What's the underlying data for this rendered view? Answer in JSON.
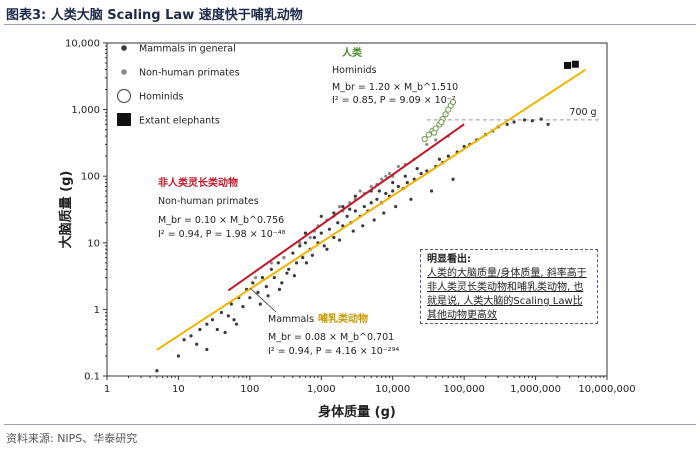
{
  "figure_title": "图表3:  人类大脑 Scaling Law 速度快于哺乳动物",
  "source": "资料来源: NIPS、华泰研究",
  "note": {
    "title": "明显看出:",
    "body": "人类的大脑质量/身体质量, 斜率高于非人类灵长类动物和哺乳类动物, 也就是说, 人类大脑的Scaling Law比其他动物更高效"
  },
  "colors": {
    "mammals": "#3a3a3a",
    "primates": "#8a8a8a",
    "mammal_line": "#f0b400",
    "primate_line": "#c0182a",
    "hominid_line": "#4a8a2a",
    "threshold_line": "#999999"
  },
  "chart_data": {
    "type": "scatter",
    "x_scale": "log",
    "y_scale": "log",
    "xlim": [
      1,
      10000000
    ],
    "ylim": [
      0.1,
      10000
    ],
    "xlabel": "身体质量 (g)",
    "ylabel": "大脑质量 (g)",
    "x_tick_labels": [
      "1",
      "10",
      "100",
      "1,000",
      "10,000",
      "100,000",
      "1,000,000",
      "10,000,000"
    ],
    "y_tick_labels": [
      "0.1",
      "1",
      "10",
      "100",
      "1,000",
      "10,000"
    ],
    "grid": false,
    "legend_position": "top-left",
    "legend": [
      {
        "label": "Mammals in general",
        "marker": "small-dark-dot"
      },
      {
        "label": "Non-human primates",
        "marker": "small-gray-dot"
      },
      {
        "label": "Hominids",
        "marker": "open-circle"
      },
      {
        "label": "Extant elephants",
        "marker": "black-square"
      }
    ],
    "fits": [
      {
        "name": "人类",
        "subname": "Hominids",
        "eq": "M_br = 1.20 × M_b^1.510",
        "stats": "I² = 0.85, P = 9.09 × 10⁻⁷",
        "coef": 1.2,
        "exp": 1.51,
        "x_range": [
          25000,
          80000
        ]
      },
      {
        "name": "非人类灵长类动物",
        "subname": "Non-human primates",
        "eq": "M_br = 0.10 × M_b^0.756",
        "stats": "I² = 0.94, P = 1.98 × 10⁻⁴⁸",
        "coef": 0.1,
        "exp": 0.756,
        "x_range": [
          50,
          100000
        ]
      },
      {
        "name": "哺乳类动物",
        "subname": "Mammals",
        "eq": "M_br = 0.08 × M_b^0.701",
        "stats": "I² = 0.94, P = 4.16 × 10⁻²⁹⁴",
        "coef": 0.08,
        "exp": 0.701,
        "x_range": [
          5,
          5000000
        ]
      }
    ],
    "reference_line": {
      "label": "700 g",
      "y": 700
    },
    "elephants": [
      {
        "x": 2800000,
        "y": 4600
      },
      {
        "x": 3600000,
        "y": 4800
      }
    ],
    "hominids": [
      {
        "x": 28000,
        "y": 360
      },
      {
        "x": 32000,
        "y": 420
      },
      {
        "x": 36000,
        "y": 480
      },
      {
        "x": 40000,
        "y": 520
      },
      {
        "x": 45000,
        "y": 600
      },
      {
        "x": 50000,
        "y": 720
      },
      {
        "x": 55000,
        "y": 850
      },
      {
        "x": 60000,
        "y": 1000
      },
      {
        "x": 65000,
        "y": 1150
      },
      {
        "x": 70000,
        "y": 1300
      },
      {
        "x": 38000,
        "y": 450
      },
      {
        "x": 48000,
        "y": 650
      }
    ],
    "primates": [
      {
        "x": 120,
        "y": 3
      },
      {
        "x": 200,
        "y": 5
      },
      {
        "x": 300,
        "y": 6
      },
      {
        "x": 500,
        "y": 10
      },
      {
        "x": 700,
        "y": 12
      },
      {
        "x": 900,
        "y": 18
      },
      {
        "x": 1200,
        "y": 22
      },
      {
        "x": 1500,
        "y": 25
      },
      {
        "x": 2000,
        "y": 30
      },
      {
        "x": 2500,
        "y": 40
      },
      {
        "x": 3000,
        "y": 45
      },
      {
        "x": 4000,
        "y": 55
      },
      {
        "x": 5000,
        "y": 70
      },
      {
        "x": 6000,
        "y": 75
      },
      {
        "x": 7000,
        "y": 90
      },
      {
        "x": 8000,
        "y": 100
      },
      {
        "x": 9000,
        "y": 110
      },
      {
        "x": 10000,
        "y": 100
      },
      {
        "x": 12000,
        "y": 140
      },
      {
        "x": 15000,
        "y": 150
      },
      {
        "x": 20000,
        "y": 180
      },
      {
        "x": 30000,
        "y": 300
      },
      {
        "x": 40000,
        "y": 350
      },
      {
        "x": 60000,
        "y": 400
      },
      {
        "x": 800,
        "y": 15
      },
      {
        "x": 1800,
        "y": 35
      },
      {
        "x": 3500,
        "y": 60
      }
    ],
    "mammals": [
      {
        "x": 5,
        "y": 0.12
      },
      {
        "x": 10,
        "y": 0.2
      },
      {
        "x": 12,
        "y": 0.35
      },
      {
        "x": 15,
        "y": 0.4
      },
      {
        "x": 18,
        "y": 0.3
      },
      {
        "x": 20,
        "y": 0.5
      },
      {
        "x": 25,
        "y": 0.6
      },
      {
        "x": 30,
        "y": 0.7
      },
      {
        "x": 35,
        "y": 0.5
      },
      {
        "x": 40,
        "y": 0.9
      },
      {
        "x": 50,
        "y": 0.8
      },
      {
        "x": 55,
        "y": 1.2
      },
      {
        "x": 60,
        "y": 0.7
      },
      {
        "x": 70,
        "y": 1.5
      },
      {
        "x": 80,
        "y": 1.1
      },
      {
        "x": 90,
        "y": 2
      },
      {
        "x": 100,
        "y": 1.5
      },
      {
        "x": 110,
        "y": 2.5
      },
      {
        "x": 130,
        "y": 1.8
      },
      {
        "x": 150,
        "y": 3
      },
      {
        "x": 170,
        "y": 2.2
      },
      {
        "x": 200,
        "y": 4
      },
      {
        "x": 220,
        "y": 3
      },
      {
        "x": 250,
        "y": 5
      },
      {
        "x": 280,
        "y": 2.5
      },
      {
        "x": 300,
        "y": 6
      },
      {
        "x": 350,
        "y": 4
      },
      {
        "x": 400,
        "y": 7
      },
      {
        "x": 450,
        "y": 5
      },
      {
        "x": 500,
        "y": 9
      },
      {
        "x": 550,
        "y": 6
      },
      {
        "x": 600,
        "y": 10
      },
      {
        "x": 700,
        "y": 8
      },
      {
        "x": 800,
        "y": 12
      },
      {
        "x": 900,
        "y": 10
      },
      {
        "x": 1000,
        "y": 14
      },
      {
        "x": 1100,
        "y": 9
      },
      {
        "x": 1300,
        "y": 16
      },
      {
        "x": 1500,
        "y": 12
      },
      {
        "x": 1700,
        "y": 20
      },
      {
        "x": 2000,
        "y": 18
      },
      {
        "x": 2300,
        "y": 25
      },
      {
        "x": 2600,
        "y": 20
      },
      {
        "x": 3000,
        "y": 30
      },
      {
        "x": 3500,
        "y": 25
      },
      {
        "x": 4000,
        "y": 35
      },
      {
        "x": 4500,
        "y": 30
      },
      {
        "x": 5000,
        "y": 40
      },
      {
        "x": 6000,
        "y": 45
      },
      {
        "x": 7000,
        "y": 40
      },
      {
        "x": 8000,
        "y": 55
      },
      {
        "x": 9000,
        "y": 50
      },
      {
        "x": 10000,
        "y": 60
      },
      {
        "x": 12000,
        "y": 70
      },
      {
        "x": 14000,
        "y": 65
      },
      {
        "x": 16000,
        "y": 80
      },
      {
        "x": 20000,
        "y": 90
      },
      {
        "x": 25000,
        "y": 110
      },
      {
        "x": 30000,
        "y": 120
      },
      {
        "x": 40000,
        "y": 140
      },
      {
        "x": 50000,
        "y": 160
      },
      {
        "x": 60000,
        "y": 200
      },
      {
        "x": 80000,
        "y": 230
      },
      {
        "x": 100000,
        "y": 280
      },
      {
        "x": 120000,
        "y": 300
      },
      {
        "x": 150000,
        "y": 350
      },
      {
        "x": 200000,
        "y": 420
      },
      {
        "x": 250000,
        "y": 480
      },
      {
        "x": 300000,
        "y": 550
      },
      {
        "x": 400000,
        "y": 600
      },
      {
        "x": 500000,
        "y": 650
      },
      {
        "x": 700000,
        "y": 700
      },
      {
        "x": 900000,
        "y": 680
      },
      {
        "x": 1200000,
        "y": 720
      },
      {
        "x": 1500000,
        "y": 600
      },
      {
        "x": 25,
        "y": 0.25
      },
      {
        "x": 45,
        "y": 0.45
      },
      {
        "x": 65,
        "y": 0.6
      },
      {
        "x": 140,
        "y": 1.2
      },
      {
        "x": 180,
        "y": 1.6
      },
      {
        "x": 260,
        "y": 2
      },
      {
        "x": 330,
        "y": 3.5
      },
      {
        "x": 420,
        "y": 3.2
      },
      {
        "x": 620,
        "y": 5
      },
      {
        "x": 750,
        "y": 6.5
      },
      {
        "x": 1200,
        "y": 8
      },
      {
        "x": 1800,
        "y": 11
      },
      {
        "x": 2800,
        "y": 15
      },
      {
        "x": 3800,
        "y": 18
      },
      {
        "x": 5500,
        "y": 22
      },
      {
        "x": 7500,
        "y": 28
      },
      {
        "x": 11000,
        "y": 35
      },
      {
        "x": 18000,
        "y": 45
      },
      {
        "x": 35000,
        "y": 60
      },
      {
        "x": 70000,
        "y": 90
      },
      {
        "x": 1000,
        "y": 25
      },
      {
        "x": 2000,
        "y": 35
      },
      {
        "x": 3000,
        "y": 50
      },
      {
        "x": 5000,
        "y": 60
      },
      {
        "x": 10000,
        "y": 80
      },
      {
        "x": 15000,
        "y": 100
      },
      {
        "x": 22000,
        "y": 130
      },
      {
        "x": 45000,
        "y": 180
      },
      {
        "x": 600,
        "y": 14
      },
      {
        "x": 1500,
        "y": 28
      },
      {
        "x": 2500,
        "y": 32
      },
      {
        "x": 6500,
        "y": 60
      }
    ]
  }
}
